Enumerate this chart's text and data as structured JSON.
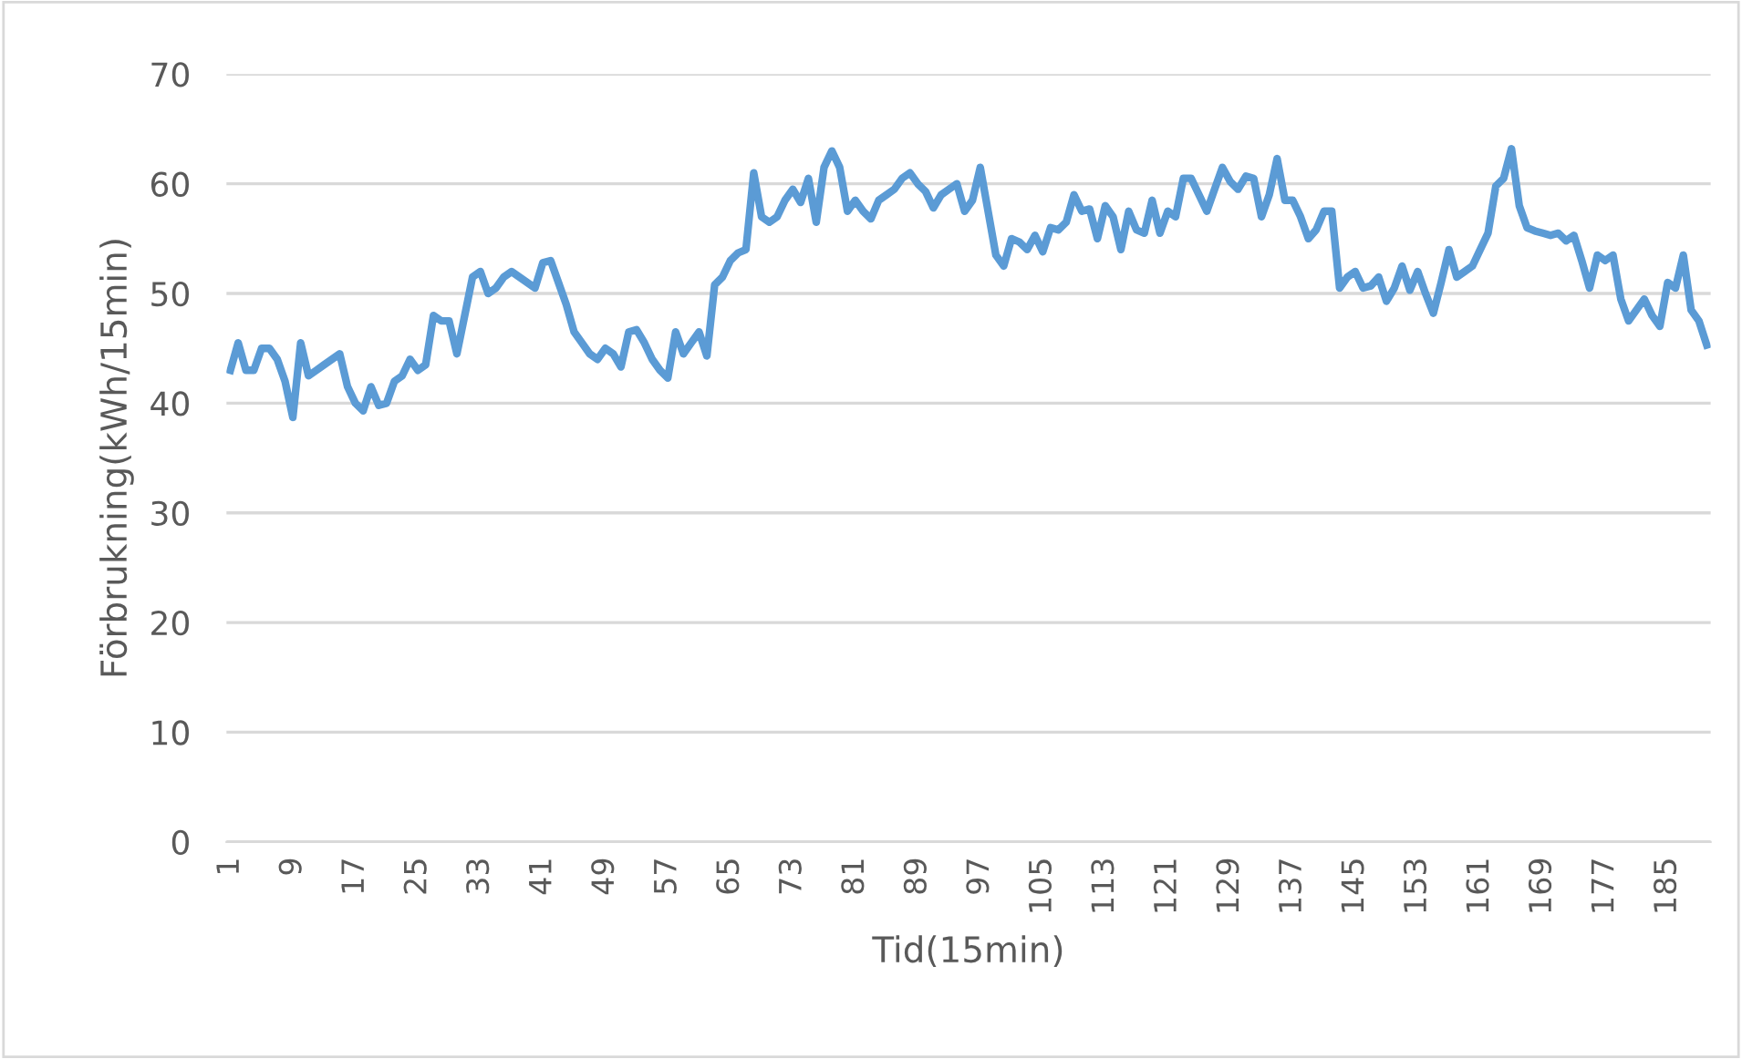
{
  "chart_data": {
    "type": "line",
    "xlabel": "Tid(15min)",
    "ylabel": "Förbrukning(kWh/15min)",
    "categories": [
      "1",
      null,
      null,
      null,
      null,
      null,
      null,
      null,
      "9",
      null,
      null,
      null,
      null,
      null,
      null,
      null,
      "17",
      null,
      null,
      null,
      null,
      null,
      null,
      null,
      "25",
      null,
      null,
      null,
      null,
      null,
      null,
      null,
      "33",
      null,
      null,
      null,
      null,
      null,
      null,
      null,
      "41",
      null,
      null,
      null,
      null,
      null,
      null,
      null,
      "49",
      null,
      null,
      null,
      null,
      null,
      null,
      null,
      "57",
      null,
      null,
      null,
      null,
      null,
      null,
      null,
      "65",
      null,
      null,
      null,
      null,
      null,
      null,
      null,
      "73",
      null,
      null,
      null,
      null,
      null,
      null,
      null,
      "81",
      null,
      null,
      null,
      null,
      null,
      null,
      null,
      "89",
      null,
      null,
      null,
      null,
      null,
      null,
      null,
      "97",
      null,
      null,
      null,
      null,
      null,
      null,
      null,
      "105",
      null,
      null,
      null,
      null,
      null,
      null,
      null,
      "113",
      null,
      null,
      null,
      null,
      null,
      null,
      null,
      "121",
      null,
      null,
      null,
      null,
      null,
      null,
      null,
      "129",
      null,
      null,
      null,
      null,
      null,
      null,
      null,
      "137",
      null,
      null,
      null,
      null,
      null,
      null,
      null,
      "145",
      null,
      null,
      null,
      null,
      null,
      null,
      null,
      "153",
      null,
      null,
      null,
      null,
      null,
      null,
      null,
      "161",
      null,
      null,
      null,
      null,
      null,
      null,
      null,
      "169",
      null,
      null,
      null,
      null,
      null,
      null,
      null,
      "177",
      null,
      null,
      null,
      null,
      null,
      null,
      null,
      "185",
      null,
      null,
      null,
      null,
      null
    ],
    "series": [
      {
        "color": "#5b9bd5",
        "values": [
          43,
          45.5,
          43,
          43,
          45,
          45,
          44,
          42,
          38.7,
          45.5,
          42.5,
          43,
          43.5,
          44,
          44.5,
          41.5,
          40,
          39.3,
          41.5,
          39.8,
          40,
          42,
          42.5,
          44,
          43,
          43.5,
          48,
          47.5,
          47.5,
          44.5,
          48,
          51.5,
          52,
          50,
          50.5,
          51.5,
          52,
          51.5,
          51,
          50.5,
          52.8,
          53,
          51,
          49,
          46.5,
          45.5,
          44.5,
          44,
          45,
          44.5,
          43.3,
          46.5,
          46.7,
          45.5,
          44,
          43,
          42.3,
          46.5,
          44.5,
          45.5,
          46.5,
          44.3,
          50.8,
          51.5,
          53,
          53.7,
          54,
          61,
          57,
          56.5,
          57,
          58.5,
          59.5,
          58.3,
          60.5,
          56.5,
          61.5,
          63,
          61.5,
          57.5,
          58.5,
          57.5,
          56.8,
          58.5,
          59,
          59.5,
          60.5,
          61,
          60,
          59.3,
          57.8,
          59,
          59.5,
          60,
          57.5,
          58.5,
          61.5,
          57.5,
          53.5,
          52.5,
          55,
          54.7,
          54,
          55.3,
          53.8,
          56,
          55.8,
          56.5,
          59,
          57.5,
          57.7,
          55,
          58,
          57,
          54,
          57.5,
          55.8,
          55.5,
          58.5,
          55.5,
          57.5,
          57,
          60.5,
          60.5,
          59,
          57.5,
          59.5,
          61.5,
          60.2,
          59.5,
          60.7,
          60.5,
          57,
          59,
          62.3,
          58.5,
          58.5,
          57,
          55,
          55.8,
          57.5,
          57.5,
          50.5,
          51.5,
          52,
          50.5,
          50.7,
          51.5,
          49.3,
          50.5,
          52.5,
          50.3,
          52,
          50,
          48.2,
          51,
          54,
          51.5,
          52,
          52.5,
          54,
          55.5,
          59.8,
          60.5,
          63.2,
          58,
          56,
          55.7,
          55.5,
          55.3,
          55.5,
          54.8,
          55.3,
          53,
          50.5,
          53.5,
          53,
          53.5,
          49.5,
          47.5,
          48.5,
          49.5,
          48,
          47,
          51,
          50.5,
          53.5,
          48.5,
          47.5,
          45.3
        ]
      }
    ],
    "ylim": [
      0,
      70
    ],
    "yticks": [
      0,
      10,
      20,
      30,
      40,
      50,
      60,
      70
    ],
    "grid": "y",
    "legend": false,
    "marker": "none",
    "line_style": "solid"
  }
}
